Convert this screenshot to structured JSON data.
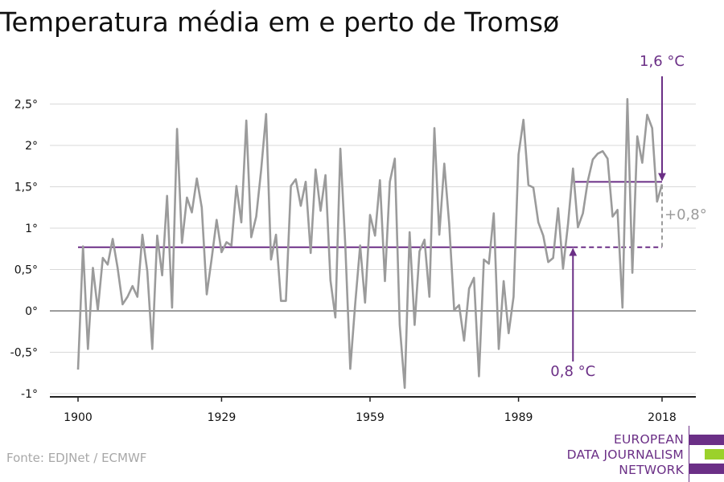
{
  "title": "Temperatura média em e perto de Tromsø",
  "source": "Fonte: EDJNet / ECMWF",
  "logo": {
    "lines": [
      "EUROPEAN",
      "DATA JOURNALISM",
      "NETWORK"
    ],
    "colors": {
      "purple": "#6b2f86",
      "green": "#9bd12b"
    }
  },
  "colors": {
    "line": "#9b9b9b",
    "accent": "#6b2f86",
    "grid": "#d9d9d9",
    "zero": "#9b9b9b",
    "delta": "#9b9b9b"
  },
  "chart_data": {
    "type": "line",
    "title": "Temperatura média em e perto de Tromsø",
    "xlabel": "",
    "ylabel": "",
    "xlim": [
      1900,
      2018
    ],
    "ylim": [
      -1,
      2.5
    ],
    "xticks": [
      1900,
      1929,
      1959,
      1989,
      2018
    ],
    "xtick_labels": [
      "1900",
      "1929",
      "1959",
      "1989",
      "2018"
    ],
    "yticks": [
      -1,
      -0.5,
      0,
      0.5,
      1,
      1.5,
      2,
      2.5
    ],
    "ytick_labels": [
      "-1°",
      "-0,5°",
      "0°",
      "0,5°",
      "1°",
      "1,5°",
      "2°",
      "2,5°"
    ],
    "grid": true,
    "series": [
      {
        "x": [
          1900,
          1901,
          1902,
          1903,
          1904,
          1905,
          1906,
          1907,
          1908,
          1909,
          1910,
          1911,
          1912,
          1913,
          1914,
          1915,
          1916,
          1917,
          1918,
          1919,
          1920,
          1921,
          1922,
          1923,
          1924,
          1925,
          1926,
          1927,
          1928,
          1929,
          1930,
          1931,
          1932,
          1933,
          1934,
          1935,
          1936,
          1937,
          1938,
          1939,
          1940,
          1941,
          1942,
          1943,
          1944,
          1945,
          1946,
          1947,
          1948,
          1949,
          1950,
          1951,
          1952,
          1953,
          1954,
          1955,
          1956,
          1957,
          1958,
          1959,
          1960,
          1961,
          1962,
          1963,
          1964,
          1965,
          1966,
          1967,
          1968,
          1969,
          1970,
          1971,
          1972,
          1973,
          1974,
          1975,
          1976,
          1977,
          1978,
          1979,
          1980,
          1981,
          1982,
          1983,
          1984,
          1985,
          1986,
          1987,
          1988,
          1989,
          1990,
          1991,
          1992,
          1993,
          1994,
          1995,
          1996,
          1997,
          1998,
          1999,
          2000,
          2001,
          2002,
          2003,
          2004,
          2005,
          2006,
          2007,
          2008,
          2009,
          2010,
          2011,
          2012,
          2013,
          2014,
          2015,
          2016,
          2017,
          2018
        ],
        "values": [
          -0.71,
          0.78,
          -0.46,
          0.52,
          0.01,
          0.64,
          0.56,
          0.87,
          0.52,
          0.08,
          0.17,
          0.3,
          0.17,
          0.92,
          0.48,
          -0.46,
          0.91,
          0.43,
          1.39,
          0.04,
          2.2,
          0.82,
          1.37,
          1.19,
          1.6,
          1.25,
          0.2,
          0.63,
          1.1,
          0.71,
          0.83,
          0.79,
          1.51,
          1.07,
          2.3,
          0.89,
          1.14,
          1.7,
          2.38,
          0.62,
          0.92,
          0.12,
          0.12,
          1.51,
          1.59,
          1.27,
          1.56,
          0.7,
          1.71,
          1.21,
          1.64,
          0.37,
          -0.08,
          1.96,
          0.8,
          -0.7,
          0.08,
          0.79,
          0.1,
          1.16,
          0.91,
          1.58,
          0.36,
          1.56,
          1.84,
          -0.17,
          -0.93,
          0.95,
          -0.17,
          0.72,
          0.86,
          0.17,
          2.21,
          0.92,
          1.78,
          1.05,
          0.01,
          0.07,
          -0.36,
          0.27,
          0.4,
          -0.79,
          0.62,
          0.57,
          1.18,
          -0.46,
          0.36,
          -0.27,
          0.17,
          1.89,
          2.31,
          1.52,
          1.49,
          1.07,
          0.91,
          0.59,
          0.64,
          1.24,
          0.51,
          1.05,
          1.72,
          1.01,
          1.18,
          1.57,
          1.83,
          1.9,
          1.93,
          1.84,
          1.14,
          1.22,
          0.04,
          2.56,
          0.46,
          2.11,
          1.79,
          2.37,
          2.21,
          1.32,
          1.53
        ]
      }
    ],
    "reference_lines": [
      {
        "label": "0,8 °C",
        "value": 0.77,
        "x_start": 1900,
        "x_solid_end": 2000,
        "x_end": 2018,
        "style": "solid-then-dashed"
      },
      {
        "label": "1,6 °C",
        "value": 1.56,
        "x_start": 2000,
        "x_end": 2018,
        "style": "solid"
      }
    ],
    "annotations": [
      {
        "text": "1,6 °C",
        "target_year": 2018,
        "target_value": 1.56,
        "position": "above"
      },
      {
        "text": "0,8 °C",
        "target_year": 2000,
        "target_value": 0.77,
        "position": "below"
      },
      {
        "text": "+0,8°",
        "at_year": 2018,
        "position": "right"
      }
    ]
  }
}
